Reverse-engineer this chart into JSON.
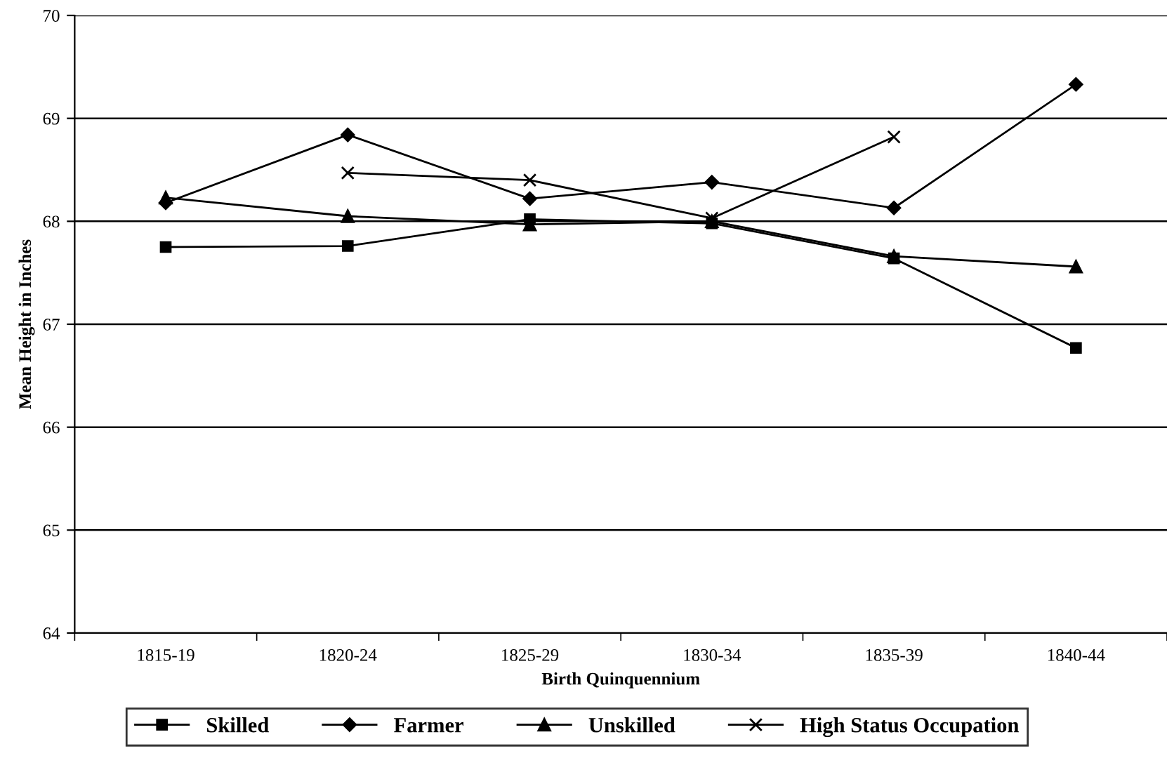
{
  "chart_data": {
    "type": "line",
    "xlabel": "Birth Quinquennium",
    "ylabel": "Mean Height in Inches",
    "categories": [
      "1815-19",
      "1820-24",
      "1825-29",
      "1830-34",
      "1835-39",
      "1840-44"
    ],
    "series": [
      {
        "name": "Skilled",
        "color": "#000000",
        "marker": "square",
        "values": [
          67.75,
          67.76,
          68.02,
          67.98,
          67.64,
          66.77
        ]
      },
      {
        "name": "Farmer",
        "color": "#000000",
        "marker": "diamond",
        "values": [
          68.18,
          68.84,
          68.22,
          68.38,
          68.13,
          69.33
        ]
      },
      {
        "name": "Unskilled",
        "color": "#000000",
        "marker": "triangle",
        "values": [
          68.23,
          68.05,
          67.97,
          68.0,
          67.66,
          67.56
        ]
      },
      {
        "name": "High Status Occupation",
        "color": "#000000",
        "marker": "cross",
        "values": [
          null,
          68.47,
          68.4,
          68.03,
          68.82,
          null
        ]
      }
    ],
    "ylim": [
      64,
      70
    ],
    "yticks": [
      64,
      65,
      66,
      67,
      68,
      69,
      70
    ],
    "grid": "y",
    "legend": "bottom",
    "line_style": "solid"
  }
}
